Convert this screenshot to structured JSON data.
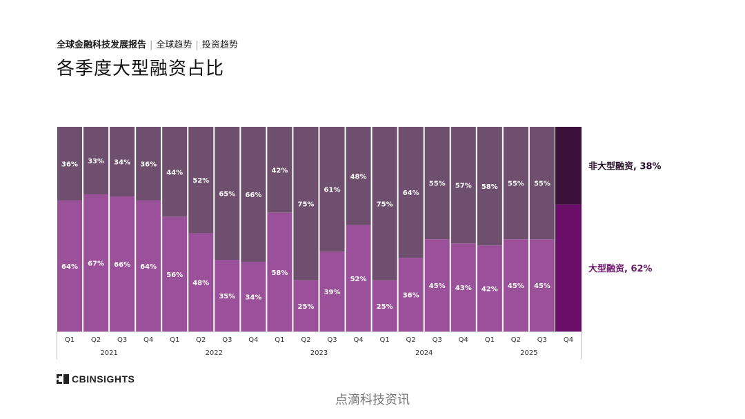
{
  "header": {
    "report": "全球金融科技发展报告",
    "section": "全球趋势",
    "subsection": "投资趋势",
    "title": "各季度大型融资占比"
  },
  "logo": {
    "text": "CBINSIGHTS"
  },
  "watermark": "点滴科技资讯",
  "colors": {
    "large": "#9b5199",
    "non_large": "#6e4f6e",
    "large_highlight": "#6a0e6a",
    "non_large_highlight": "#3a0f38",
    "legend_large_text": "#6a1b6a",
    "legend_non_large_text": "#2a0f2a"
  },
  "chart_data": {
    "type": "bar",
    "stacked": true,
    "normalized_percent": true,
    "categories": [
      "Q1",
      "Q2",
      "Q3",
      "Q4",
      "Q1",
      "Q2",
      "Q3",
      "Q4",
      "Q1",
      "Q2",
      "Q3",
      "Q4",
      "Q1",
      "Q2",
      "Q3",
      "Q4",
      "Q1",
      "Q2",
      "Q3",
      "Q4"
    ],
    "years": [
      {
        "label": "2021",
        "quarters": 4
      },
      {
        "label": "2022",
        "quarters": 4
      },
      {
        "label": "2023",
        "quarters": 4
      },
      {
        "label": "2024",
        "quarters": 4
      },
      {
        "label": "2025",
        "quarters": 4
      }
    ],
    "series": [
      {
        "name": "大型融资",
        "values": [
          64,
          67,
          66,
          64,
          56,
          48,
          35,
          34,
          58,
          25,
          39,
          52,
          25,
          36,
          45,
          43,
          42,
          45,
          45,
          62
        ]
      },
      {
        "name": "非大型融资",
        "values": [
          36,
          33,
          34,
          36,
          44,
          52,
          65,
          66,
          42,
          75,
          61,
          48,
          75,
          64,
          55,
          57,
          58,
          55,
          55,
          38
        ]
      }
    ],
    "legend": [
      {
        "label": "非大型融资, 38%"
      },
      {
        "label": "大型融资, 62%"
      }
    ],
    "highlight_last_bar": true,
    "ylim": [
      0,
      100
    ]
  }
}
